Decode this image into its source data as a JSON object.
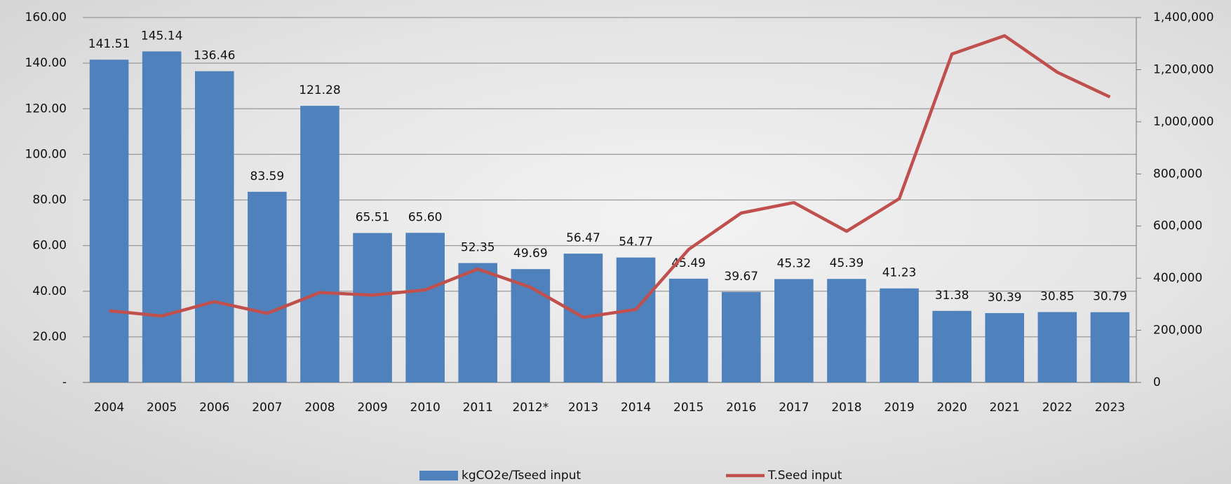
{
  "chart_data": {
    "type": "bar-line",
    "categories": [
      "2004",
      "2005",
      "2006",
      "2007",
      "2008",
      "2009",
      "2010",
      "2011",
      "2012*",
      "2013",
      "2014",
      "2015",
      "2016",
      "2017",
      "2018",
      "2019",
      "2020",
      "2021",
      "2022",
      "2023"
    ],
    "series": [
      {
        "name": "kgCO2e/Tseed input",
        "color": "#4f81bd",
        "type": "bar",
        "values": [
          141.51,
          145.14,
          136.46,
          83.59,
          121.28,
          65.51,
          65.6,
          52.35,
          49.69,
          56.47,
          54.77,
          45.49,
          39.67,
          45.32,
          45.39,
          41.23,
          31.38,
          30.39,
          30.85,
          30.79
        ],
        "value_labels": [
          "141.51",
          "145.14",
          "136.46",
          "83.59",
          "121.28",
          "65.51",
          "65.60",
          "52.35",
          "49.69",
          "56.47",
          "54.77",
          "45.49",
          "39.67",
          "45.32",
          "45.39",
          "41.23",
          "31.38",
          "30.39",
          "30.85",
          "30.79"
        ]
      },
      {
        "name": "T.Seed input",
        "color": "#c0504d",
        "type": "line",
        "axis": "y2",
        "values": [
          275000,
          255000,
          310000,
          265000,
          345000,
          335000,
          355000,
          435000,
          365000,
          250000,
          280000,
          510000,
          650000,
          690000,
          580000,
          705000,
          1260000,
          1330000,
          1190000,
          1095000
        ]
      }
    ],
    "ylim": [
      0,
      160
    ],
    "yticks": [
      {
        "value": 0,
        "label": "-"
      },
      {
        "value": 20,
        "label": "20.00"
      },
      {
        "value": 40,
        "label": "40.00"
      },
      {
        "value": 60,
        "label": "60.00"
      },
      {
        "value": 80,
        "label": "80.00"
      },
      {
        "value": 100,
        "label": "100.00"
      },
      {
        "value": 120,
        "label": "120.00"
      },
      {
        "value": 140,
        "label": "140.00"
      },
      {
        "value": 160,
        "label": "160.00"
      }
    ],
    "y2lim": [
      0,
      1400000
    ],
    "y2ticks": [
      0,
      {
        "value": 200000,
        "label": "200,000"
      },
      {
        "value": 400000,
        "label": "400,000"
      },
      {
        "value": 600000,
        "label": "600,000"
      },
      {
        "value": 800000,
        "label": "800,000"
      },
      {
        "value": 1000000,
        "label": "1,000,000"
      },
      {
        "value": 1200000,
        "label": "1,200,000"
      },
      {
        "value": 1400000,
        "label": "1,400,000"
      }
    ],
    "grid": true,
    "legend": "bottom"
  }
}
